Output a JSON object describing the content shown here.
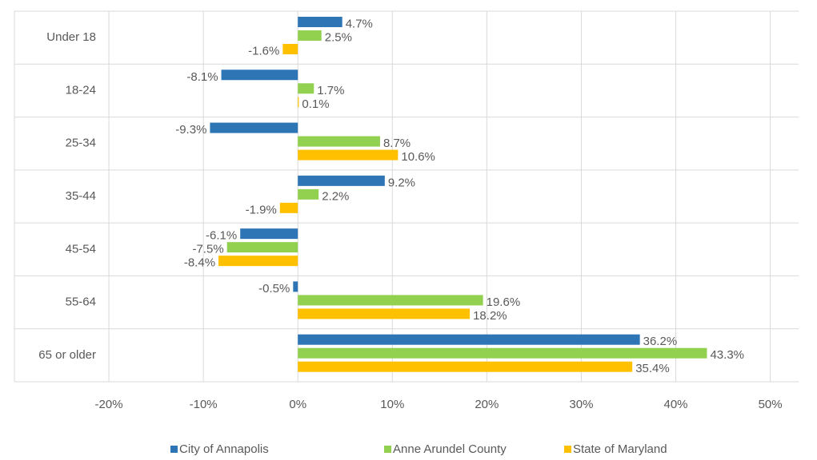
{
  "chart_data": {
    "type": "bar",
    "orientation": "horizontal",
    "categories": [
      "Under 18",
      "18-24",
      "25-34",
      "35-44",
      "45-54",
      "55-64",
      "65 or older"
    ],
    "series": [
      {
        "name": "City of Annapolis",
        "color": "#2e75b6",
        "values": [
          4.7,
          -8.1,
          -9.3,
          9.2,
          -6.1,
          -0.5,
          36.2
        ],
        "value_labels": [
          "4.7%",
          "-8.1%",
          "-9.3%",
          "9.2%",
          "-6.1%",
          "-0.5%",
          "36.2%"
        ]
      },
      {
        "name": "Anne Arundel County",
        "color": "#92d050",
        "values": [
          2.5,
          1.7,
          8.7,
          2.2,
          -7.5,
          19.6,
          43.3
        ],
        "value_labels": [
          "2.5%",
          "1.7%",
          "8.7%",
          "2.2%",
          "-7.5%",
          "19.6%",
          "43.3%"
        ]
      },
      {
        "name": "State of Maryland",
        "color": "#ffc000",
        "values": [
          -1.6,
          0.1,
          10.6,
          -1.9,
          -8.4,
          18.2,
          35.4
        ],
        "value_labels": [
          "-1.6%",
          "0.1%",
          "10.6%",
          "-1.9%",
          "-8.4%",
          "18.2%",
          "35.4%"
        ]
      }
    ],
    "xlim": [
      -30,
      53
    ],
    "xticks": [
      {
        "value": -20,
        "label": "-20%"
      },
      {
        "value": -10,
        "label": "-10%"
      },
      {
        "value": 0,
        "label": "0%"
      },
      {
        "value": 10,
        "label": "10%"
      },
      {
        "value": 20,
        "label": "20%"
      },
      {
        "value": 30,
        "label": "30%"
      },
      {
        "value": 40,
        "label": "40%"
      },
      {
        "value": 50,
        "label": "50%"
      }
    ],
    "grid": true,
    "legend": "bottom"
  }
}
